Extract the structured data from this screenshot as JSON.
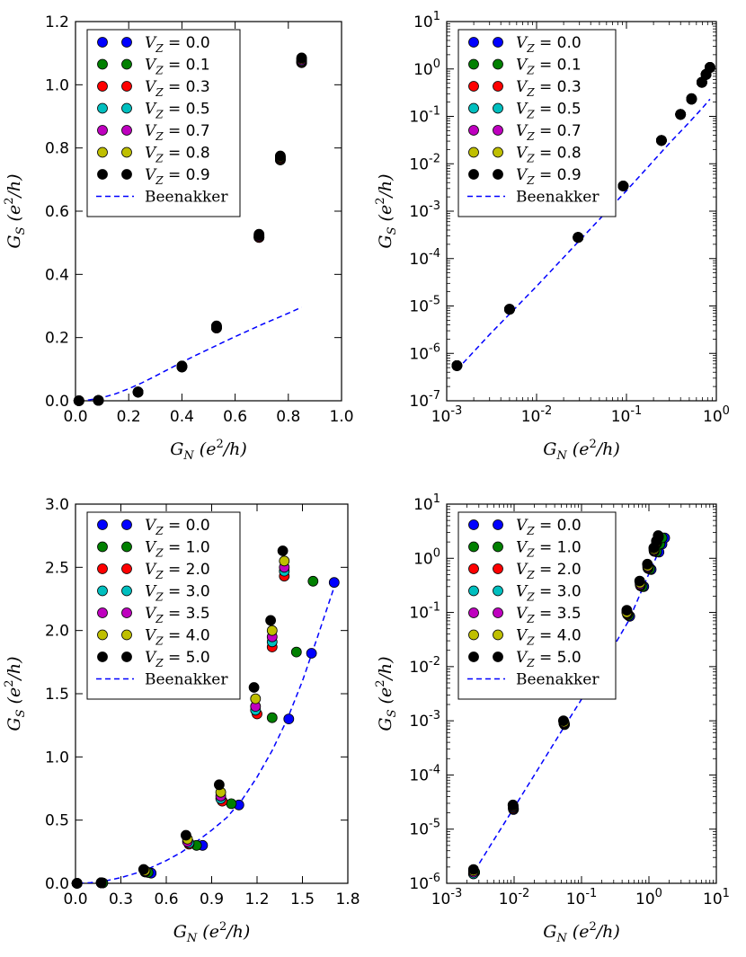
{
  "chart_data": [
    {
      "type": "scatter",
      "xscale": "linear",
      "yscale": "linear",
      "xlim": [
        0,
        1.0
      ],
      "ylim": [
        0,
        1.2
      ],
      "xticks": [
        "0.0",
        "0.2",
        "0.4",
        "0.6",
        "0.8",
        "1.0"
      ],
      "xtick_values": [
        0,
        0.2,
        0.4,
        0.6,
        0.8,
        1.0
      ],
      "yticks": [
        "0.0",
        "0.2",
        "0.4",
        "0.6",
        "0.8",
        "1.0",
        "1.2"
      ],
      "ytick_values": [
        0,
        0.2,
        0.4,
        0.6,
        0.8,
        1.0,
        1.2
      ],
      "xlabel": "G_N (e²/h)",
      "ylabel": "G_S (e²/h)",
      "legend_position": "top-left",
      "legend": [
        "V_Z = 0.0",
        "V_Z = 0.1",
        "V_Z = 0.3",
        "V_Z = 0.5",
        "V_Z = 0.7",
        "V_Z = 0.8",
        "V_Z = 0.9",
        "Beenakker"
      ],
      "series": [
        {
          "name": "V_Z = 0.0",
          "color": "#0000ff",
          "x": [
            0.013,
            0.086,
            0.235,
            0.4,
            0.53,
            0.69,
            0.77,
            0.85
          ],
          "y": [
            0.0,
            0.001,
            0.027,
            0.107,
            0.23,
            0.517,
            0.762,
            1.07
          ]
        },
        {
          "name": "V_Z = 0.1",
          "color": "#008000",
          "x": [
            0.013,
            0.086,
            0.235,
            0.4,
            0.53,
            0.69,
            0.77,
            0.85
          ],
          "y": [
            0.0,
            0.001,
            0.027,
            0.107,
            0.23,
            0.517,
            0.762,
            1.07
          ]
        },
        {
          "name": "V_Z = 0.3",
          "color": "#ff0000",
          "x": [
            0.013,
            0.086,
            0.235,
            0.4,
            0.53,
            0.69,
            0.77,
            0.85
          ],
          "y": [
            0.0,
            0.001,
            0.027,
            0.107,
            0.23,
            0.517,
            0.765,
            1.072
          ]
        },
        {
          "name": "V_Z = 0.5",
          "color": "#00bfbf",
          "x": [
            0.013,
            0.086,
            0.235,
            0.4,
            0.53,
            0.69,
            0.77,
            0.85
          ],
          "y": [
            0.0,
            0.001,
            0.027,
            0.108,
            0.232,
            0.52,
            0.768,
            1.075
          ]
        },
        {
          "name": "V_Z = 0.7",
          "color": "#bf00bf",
          "x": [
            0.013,
            0.086,
            0.235,
            0.4,
            0.53,
            0.69,
            0.77,
            0.85
          ],
          "y": [
            0.0,
            0.001,
            0.028,
            0.109,
            0.234,
            0.522,
            0.77,
            1.078
          ]
        },
        {
          "name": "V_Z = 0.8",
          "color": "#bfbf00",
          "x": [
            0.013,
            0.086,
            0.235,
            0.4,
            0.53,
            0.69,
            0.77,
            0.85
          ],
          "y": [
            0.0,
            0.001,
            0.028,
            0.11,
            0.236,
            0.525,
            0.772,
            1.082
          ]
        },
        {
          "name": "V_Z = 0.9",
          "color": "#000000",
          "x": [
            0.013,
            0.086,
            0.235,
            0.4,
            0.53,
            0.69,
            0.77,
            0.85
          ],
          "y": [
            0.0,
            0.001,
            0.028,
            0.11,
            0.237,
            0.527,
            0.775,
            1.085
          ]
        }
      ],
      "beenakker": {
        "name": "Beenakker",
        "color": "#0000ff",
        "x": [
          0.013,
          0.05,
          0.1,
          0.15,
          0.2,
          0.25,
          0.3,
          0.35,
          0.4,
          0.45,
          0.5,
          0.55,
          0.6,
          0.65,
          0.7,
          0.75,
          0.8,
          0.85
        ],
        "y": [
          0.00017,
          0.0025,
          0.0099,
          0.0219,
          0.038,
          0.057,
          0.078,
          0.1,
          0.122,
          0.143,
          0.163,
          0.183,
          0.203,
          0.222,
          0.241,
          0.259,
          0.277,
          0.296
        ]
      }
    },
    {
      "type": "scatter",
      "xscale": "log",
      "yscale": "log",
      "xlim": [
        0.001,
        1
      ],
      "ylim": [
        1e-07,
        10
      ],
      "xticks": [
        "10⁻³",
        "10⁻²",
        "10⁻¹",
        "10⁰"
      ],
      "xtick_values": [
        0.001,
        0.01,
        0.1,
        1
      ],
      "yticks": [
        "10⁻⁷",
        "10⁻⁶",
        "10⁻⁵",
        "10⁻⁴",
        "10⁻³",
        "10⁻²",
        "10⁻¹",
        "10⁰",
        "10¹"
      ],
      "ytick_values": [
        1e-07,
        1e-06,
        1e-05,
        0.0001,
        0.001,
        0.01,
        0.1,
        1,
        10
      ],
      "xlabel": "G_N (e²/h)",
      "ylabel": "G_S (e²/h)",
      "legend_position": "top-left",
      "legend": [
        "V_Z = 0.0",
        "V_Z = 0.1",
        "V_Z = 0.3",
        "V_Z = 0.5",
        "V_Z = 0.7",
        "V_Z = 0.8",
        "V_Z = 0.9",
        "Beenakker"
      ],
      "series": [
        {
          "name": "V_Z = 0.0",
          "color": "#0000ff",
          "x": [
            0.0013,
            0.005,
            0.029,
            0.092,
            0.245,
            0.4,
            0.53,
            0.69,
            0.77,
            0.85
          ],
          "y": [
            5.5e-07,
            8.5e-06,
            0.00028,
            0.0034,
            0.031,
            0.11,
            0.23,
            0.52,
            0.76,
            1.07
          ]
        },
        {
          "name": "V_Z = 0.1",
          "color": "#008000",
          "x": [
            0.0013,
            0.005,
            0.029,
            0.092,
            0.245,
            0.4,
            0.53,
            0.69,
            0.77,
            0.85
          ],
          "y": [
            5.5e-07,
            8.5e-06,
            0.00028,
            0.0034,
            0.031,
            0.11,
            0.23,
            0.52,
            0.76,
            1.07
          ]
        },
        {
          "name": "V_Z = 0.3",
          "color": "#ff0000",
          "x": [
            0.0013,
            0.005,
            0.029,
            0.092,
            0.245,
            0.4,
            0.53,
            0.69,
            0.77,
            0.85
          ],
          "y": [
            5.5e-07,
            8.5e-06,
            0.00028,
            0.0034,
            0.031,
            0.11,
            0.23,
            0.52,
            0.765,
            1.072
          ]
        },
        {
          "name": "V_Z = 0.5",
          "color": "#00bfbf",
          "x": [
            0.0013,
            0.005,
            0.029,
            0.092,
            0.245,
            0.4,
            0.53,
            0.69,
            0.77,
            0.85
          ],
          "y": [
            5.5e-07,
            8.5e-06,
            0.00028,
            0.0034,
            0.031,
            0.11,
            0.232,
            0.52,
            0.768,
            1.075
          ]
        },
        {
          "name": "V_Z = 0.7",
          "color": "#bf00bf",
          "x": [
            0.0013,
            0.005,
            0.029,
            0.092,
            0.245,
            0.4,
            0.53,
            0.69,
            0.77,
            0.85
          ],
          "y": [
            5.5e-07,
            8.5e-06,
            0.00028,
            0.0034,
            0.031,
            0.11,
            0.234,
            0.522,
            0.77,
            1.078
          ]
        },
        {
          "name": "V_Z = 0.8",
          "color": "#bfbf00",
          "x": [
            0.0013,
            0.005,
            0.029,
            0.092,
            0.245,
            0.4,
            0.53,
            0.69,
            0.77,
            0.85
          ],
          "y": [
            5.5e-07,
            8.5e-06,
            0.00028,
            0.0034,
            0.031,
            0.11,
            0.236,
            0.525,
            0.772,
            1.082
          ]
        },
        {
          "name": "V_Z = 0.9",
          "color": "#000000",
          "x": [
            0.0013,
            0.005,
            0.029,
            0.092,
            0.245,
            0.4,
            0.53,
            0.69,
            0.77,
            0.85
          ],
          "y": [
            5.5e-07,
            8.5e-06,
            0.00028,
            0.0034,
            0.031,
            0.11,
            0.237,
            0.527,
            0.775,
            1.085
          ]
        }
      ],
      "beenakker": {
        "name": "Beenakker",
        "color": "#0000ff",
        "x": [
          0.0013,
          0.003,
          0.01,
          0.03,
          0.1,
          0.2,
          0.3,
          0.5,
          0.7,
          0.85
        ],
        "y": [
          4.5e-07,
          2.5e-06,
          2.6e-05,
          0.00024,
          0.0027,
          0.0115,
          0.027,
          0.075,
          0.15,
          0.23
        ]
      }
    },
    {
      "type": "scatter",
      "xscale": "linear",
      "yscale": "linear",
      "xlim": [
        0,
        1.8
      ],
      "ylim": [
        0,
        3.0
      ],
      "xticks": [
        "0.0",
        "0.3",
        "0.6",
        "0.9",
        "1.2",
        "1.5",
        "1.8"
      ],
      "xtick_values": [
        0,
        0.3,
        0.6,
        0.9,
        1.2,
        1.5,
        1.8
      ],
      "yticks": [
        "0.0",
        "0.5",
        "1.0",
        "1.5",
        "2.0",
        "2.5",
        "3.0"
      ],
      "ytick_values": [
        0,
        0.5,
        1.0,
        1.5,
        2.0,
        2.5,
        3.0
      ],
      "xlabel": "G_N (e²/h)",
      "ylabel": "G_S (e²/h)",
      "legend_position": "top-left",
      "legend": [
        "V_Z = 0.0",
        "V_Z = 1.0",
        "V_Z = 2.0",
        "V_Z = 3.0",
        "V_Z = 3.5",
        "V_Z = 4.0",
        "V_Z = 5.0",
        "Beenakker"
      ],
      "series": [
        {
          "name": "V_Z = 0.0",
          "color": "#0000ff",
          "x": [
            0.01,
            0.18,
            0.5,
            0.84,
            1.08,
            1.41,
            1.56,
            1.71
          ],
          "y": [
            0.0,
            0.003,
            0.08,
            0.3,
            0.62,
            1.3,
            1.82,
            2.38
          ]
        },
        {
          "name": "V_Z = 1.0",
          "color": "#008000",
          "x": [
            0.01,
            0.18,
            0.48,
            0.8,
            1.03,
            1.3,
            1.46,
            1.57
          ],
          "y": [
            0.0,
            0.003,
            0.085,
            0.3,
            0.63,
            1.31,
            1.83,
            2.39
          ]
        },
        {
          "name": "V_Z = 2.0",
          "color": "#ff0000",
          "x": [
            0.01,
            0.17,
            0.46,
            0.75,
            0.97,
            1.2,
            1.3,
            1.38
          ],
          "y": [
            0.0,
            0.004,
            0.09,
            0.31,
            0.65,
            1.34,
            1.87,
            2.43
          ]
        },
        {
          "name": "V_Z = 3.0",
          "color": "#00bfbf",
          "x": [
            0.01,
            0.17,
            0.46,
            0.75,
            0.96,
            1.19,
            1.3,
            1.38
          ],
          "y": [
            0.0,
            0.004,
            0.09,
            0.32,
            0.67,
            1.37,
            1.91,
            2.47
          ]
        },
        {
          "name": "V_Z = 3.5",
          "color": "#bf00bf",
          "x": [
            0.01,
            0.17,
            0.46,
            0.74,
            0.96,
            1.19,
            1.3,
            1.38
          ],
          "y": [
            0.0,
            0.004,
            0.095,
            0.33,
            0.69,
            1.4,
            1.95,
            2.5
          ]
        },
        {
          "name": "V_Z = 4.0",
          "color": "#bfbf00",
          "x": [
            0.01,
            0.17,
            0.46,
            0.74,
            0.96,
            1.19,
            1.3,
            1.38
          ],
          "y": [
            0.0,
            0.004,
            0.1,
            0.35,
            0.72,
            1.46,
            2.0,
            2.55
          ]
        },
        {
          "name": "V_Z = 5.0",
          "color": "#000000",
          "x": [
            0.01,
            0.17,
            0.45,
            0.73,
            0.95,
            1.18,
            1.29,
            1.37
          ],
          "y": [
            0.0,
            0.005,
            0.11,
            0.38,
            0.78,
            1.55,
            2.08,
            2.63
          ]
        }
      ],
      "beenakker": {
        "name": "Beenakker",
        "color": "#0000ff",
        "x": [
          0.02,
          0.1,
          0.2,
          0.3,
          0.4,
          0.5,
          0.6,
          0.7,
          0.8,
          0.9,
          1.0,
          1.1,
          1.2,
          1.3,
          1.4,
          1.5,
          1.6,
          1.72
        ],
        "y": [
          0.0002,
          0.005,
          0.02,
          0.045,
          0.08,
          0.125,
          0.18,
          0.245,
          0.33,
          0.42,
          0.52,
          0.66,
          0.84,
          1.05,
          1.3,
          1.6,
          1.95,
          2.38
        ]
      }
    },
    {
      "type": "scatter",
      "xscale": "log",
      "yscale": "log",
      "xlim": [
        0.001,
        10
      ],
      "ylim": [
        1e-06,
        10
      ],
      "xticks": [
        "10⁻³",
        "10⁻²",
        "10⁻¹",
        "10⁰",
        "10¹"
      ],
      "xtick_values": [
        0.001,
        0.01,
        0.1,
        1,
        10
      ],
      "yticks": [
        "10⁻⁶",
        "10⁻⁵",
        "10⁻⁴",
        "10⁻³",
        "10⁻²",
        "10⁻¹",
        "10⁰",
        "10¹"
      ],
      "ytick_values": [
        1e-06,
        1e-05,
        0.0001,
        0.001,
        0.01,
        0.1,
        1,
        10
      ],
      "xlabel": "G_N (e²/h)",
      "ylabel": "G_S (e²/h)",
      "legend_position": "top-left",
      "legend": [
        "V_Z = 0.0",
        "V_Z = 1.0",
        "V_Z = 2.0",
        "V_Z = 3.0",
        "V_Z = 3.5",
        "V_Z = 4.0",
        "V_Z = 5.0",
        "Beenakker"
      ],
      "series": [
        {
          "name": "V_Z = 0.0",
          "color": "#0000ff",
          "x": [
            0.0026,
            0.0098,
            0.056,
            0.52,
            0.84,
            1.08,
            1.41,
            1.56,
            1.71
          ],
          "y": [
            1.6e-06,
            2.3e-05,
            0.00085,
            0.085,
            0.3,
            0.62,
            1.3,
            1.82,
            2.38
          ]
        },
        {
          "name": "V_Z = 1.0",
          "color": "#008000",
          "x": [
            0.0026,
            0.0098,
            0.056,
            0.5,
            0.8,
            1.03,
            1.3,
            1.46,
            1.57
          ],
          "y": [
            1.6e-06,
            2.4e-05,
            0.00087,
            0.088,
            0.3,
            0.63,
            1.31,
            1.83,
            2.39
          ]
        },
        {
          "name": "V_Z = 2.0",
          "color": "#ff0000",
          "x": [
            0.0025,
            0.0097,
            0.055,
            0.48,
            0.75,
            0.97,
            1.2,
            1.3,
            1.38
          ],
          "y": [
            1.5e-06,
            2.4e-05,
            0.00089,
            0.092,
            0.31,
            0.65,
            1.34,
            1.87,
            2.43
          ]
        },
        {
          "name": "V_Z = 3.0",
          "color": "#00bfbf",
          "x": [
            0.0025,
            0.0097,
            0.055,
            0.48,
            0.75,
            0.96,
            1.19,
            1.3,
            1.38
          ],
          "y": [
            1.5e-06,
            2.5e-05,
            0.0009,
            0.095,
            0.32,
            0.67,
            1.37,
            1.91,
            2.47
          ]
        },
        {
          "name": "V_Z = 3.5",
          "color": "#bf00bf",
          "x": [
            0.0025,
            0.0097,
            0.055,
            0.48,
            0.74,
            0.96,
            1.19,
            1.3,
            1.38
          ],
          "y": [
            1.6e-06,
            2.6e-05,
            0.00092,
            0.098,
            0.33,
            0.69,
            1.4,
            1.95,
            2.5
          ]
        },
        {
          "name": "V_Z = 4.0",
          "color": "#bfbf00",
          "x": [
            0.0025,
            0.0097,
            0.055,
            0.47,
            0.74,
            0.96,
            1.19,
            1.3,
            1.38
          ],
          "y": [
            1.7e-06,
            2.7e-05,
            0.00095,
            0.1,
            0.35,
            0.72,
            1.46,
            2.0,
            2.55
          ]
        },
        {
          "name": "V_Z = 5.0",
          "color": "#000000",
          "x": [
            0.0025,
            0.0096,
            0.054,
            0.47,
            0.73,
            0.95,
            1.18,
            1.29,
            1.37
          ],
          "y": [
            1.8e-06,
            2.8e-05,
            0.001,
            0.11,
            0.38,
            0.78,
            1.55,
            2.08,
            2.63
          ]
        }
      ],
      "beenakker": {
        "name": "Beenakker",
        "color": "#0000ff",
        "x": [
          0.0026,
          0.005,
          0.01,
          0.02,
          0.05,
          0.1,
          0.2,
          0.5,
          1.0,
          1.72
        ],
        "y": [
          1.7e-06,
          6.3e-06,
          2.5e-05,
          0.0001,
          0.00063,
          0.0025,
          0.01,
          0.07,
          0.52,
          2.38
        ]
      }
    }
  ]
}
